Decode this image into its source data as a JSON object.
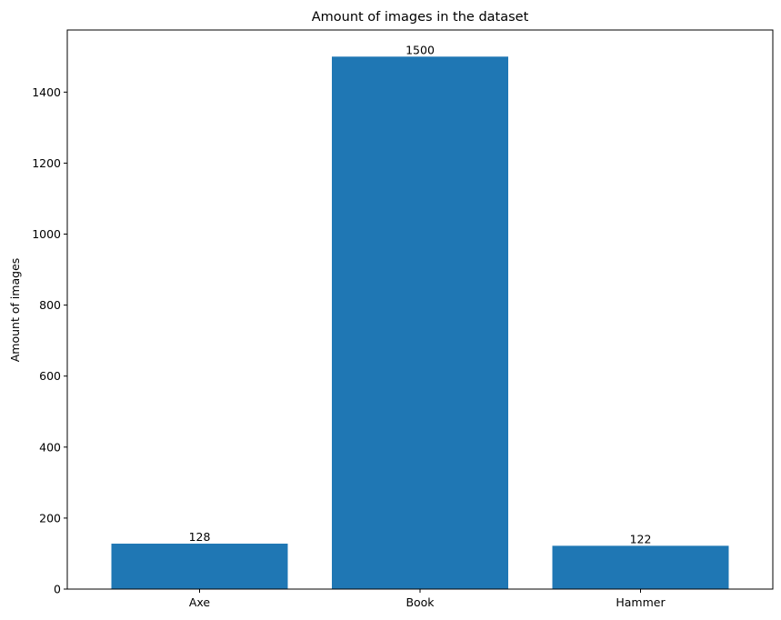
{
  "chart_data": {
    "type": "bar",
    "title": "Amount of images in the dataset",
    "xlabel": "",
    "ylabel": "Amount of images",
    "categories": [
      "Axe",
      "Book",
      "Hammer"
    ],
    "values": [
      128,
      1500,
      122
    ],
    "data_labels": [
      "128",
      "1500",
      "122"
    ],
    "ylim": [
      0,
      1575
    ],
    "yticks": [
      0,
      200,
      400,
      600,
      800,
      1000,
      1200,
      1400
    ],
    "ytick_labels": [
      "0",
      "200",
      "400",
      "600",
      "800",
      "1000",
      "1200",
      "1400"
    ],
    "bar_color": "#1f77b4",
    "grid": false,
    "legend": "none"
  }
}
